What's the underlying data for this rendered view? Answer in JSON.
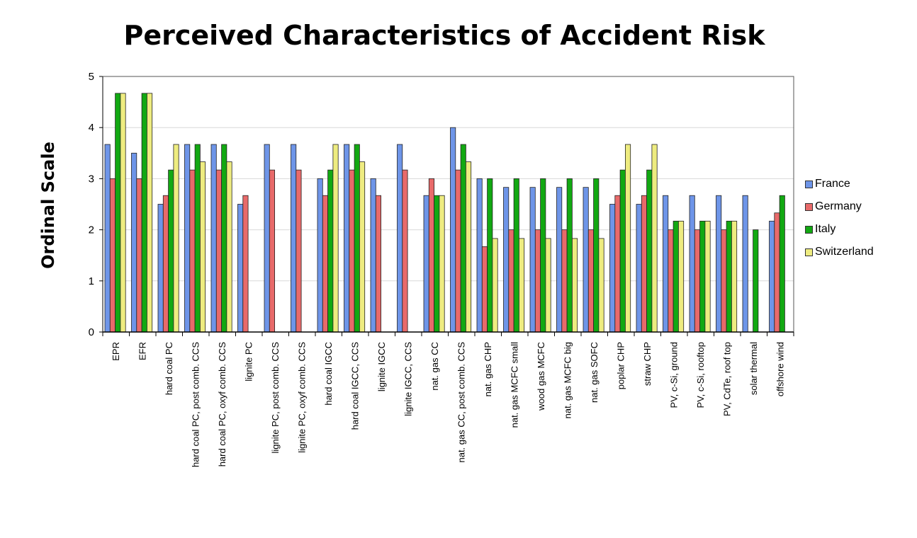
{
  "chart_data": {
    "type": "bar",
    "title": "Perceived Characteristics of Accident Risk",
    "ylabel": "Ordinal Scale",
    "xlabel": "",
    "ylim": [
      0,
      5
    ],
    "yticks": [
      "0",
      "1",
      "2",
      "3",
      "4",
      "5"
    ],
    "grid": true,
    "legend_position": "right",
    "categories": [
      "EPR",
      "EFR",
      "hard coal PC",
      "hard coal PC, post comb. CCS",
      "hard coal PC, oxyf comb. CCS",
      "lignite PC",
      "lignite PC, post comb. CCS",
      "lignite PC, oxyf comb. CCS",
      "hard coal IGCC",
      "hard coal IGCC, CCS",
      "lignite IGCC",
      "lignite IGCC, CCS",
      "nat. gas CC",
      "nat. gas CC, post comb. CCS",
      "nat. gas CHP",
      "nat. gas MCFC small",
      "wood gas MCFC",
      "nat. gas MCFC big",
      "nat. gas SOFC",
      "poplar CHP",
      "straw CHP",
      "PV, c-Si, ground",
      "PV, c-Si, rooftop",
      "PV, CdTe, roof top",
      "solar thermal",
      "offshore wind"
    ],
    "series": [
      {
        "name": "France",
        "color": "#6e95e8",
        "values": [
          3.67,
          3.5,
          2.5,
          3.67,
          3.67,
          2.5,
          3.67,
          3.67,
          3.0,
          3.67,
          3.0,
          3.67,
          2.67,
          4.0,
          3.0,
          2.83,
          2.83,
          2.83,
          2.83,
          2.5,
          2.5,
          2.67,
          2.67,
          2.67,
          2.67,
          2.17
        ]
      },
      {
        "name": "Germany",
        "color": "#e86a6a",
        "values": [
          3.0,
          3.0,
          2.67,
          3.17,
          3.17,
          2.67,
          3.17,
          3.17,
          2.67,
          3.17,
          2.67,
          3.17,
          3.0,
          3.17,
          1.67,
          2.0,
          2.0,
          2.0,
          2.0,
          2.67,
          2.67,
          2.0,
          2.0,
          2.0,
          0,
          2.33
        ]
      },
      {
        "name": "Italy",
        "color": "#12a812",
        "values": [
          4.67,
          4.67,
          3.17,
          3.67,
          3.67,
          0,
          0,
          0,
          3.17,
          3.67,
          0,
          0,
          2.67,
          3.67,
          3.0,
          3.0,
          3.0,
          3.0,
          3.0,
          3.17,
          3.17,
          2.17,
          2.17,
          2.17,
          2.0,
          2.67
        ]
      },
      {
        "name": "Switzerland",
        "color": "#eeec80",
        "values": [
          4.67,
          4.67,
          3.67,
          3.33,
          3.33,
          0,
          0,
          0,
          3.67,
          3.33,
          0,
          0,
          2.67,
          3.33,
          1.83,
          1.83,
          1.83,
          1.83,
          1.83,
          3.67,
          3.67,
          2.17,
          2.17,
          2.17,
          0,
          0
        ]
      }
    ]
  }
}
